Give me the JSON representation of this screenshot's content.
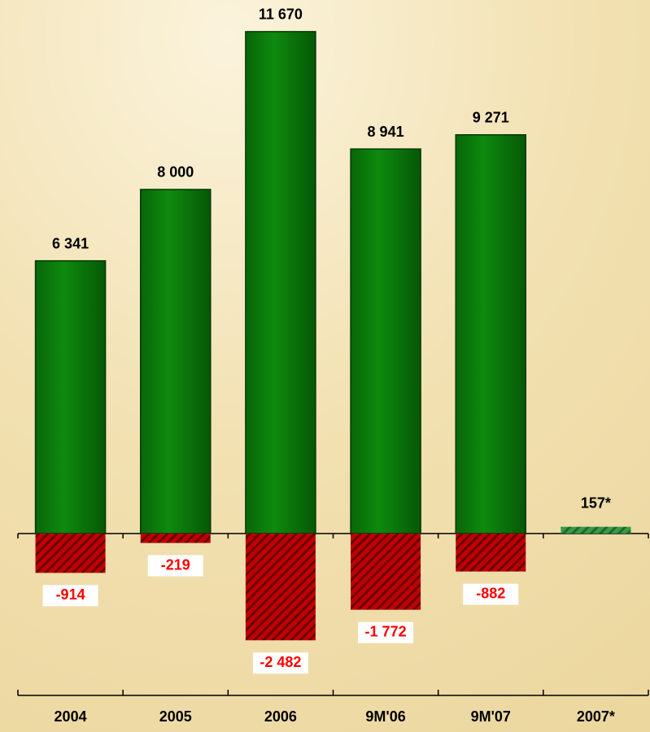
{
  "chart_data": {
    "type": "bar",
    "categories": [
      "2004",
      "2005",
      "2006",
      "9M'06",
      "9M'07",
      "2007*"
    ],
    "series": [
      {
        "color": "#0b7d0b",
        "hatch": false,
        "values": [
          6341,
          8000,
          11670,
          8941,
          9271,
          null
        ],
        "value_labels": [
          "6 341",
          "8 000",
          "11 670",
          "8 941",
          "9 271",
          null
        ],
        "label_color": "#000000"
      },
      {
        "color": "#2e8b3a",
        "hatch": true,
        "values": [
          null,
          null,
          null,
          null,
          null,
          157
        ],
        "value_labels": [
          null,
          null,
          null,
          null,
          null,
          "157*"
        ],
        "label_color": "#000000"
      },
      {
        "color": "#b00000",
        "hatch": true,
        "values": [
          -914,
          -219,
          -2482,
          -1772,
          -882,
          null
        ],
        "value_labels": [
          "-914",
          "-219",
          "-2 482",
          "-1 772",
          "-882",
          null
        ],
        "label_color": "#ff0000",
        "label_background": "#ffffff"
      }
    ],
    "ylim": [
      -2600,
      11800
    ]
  }
}
